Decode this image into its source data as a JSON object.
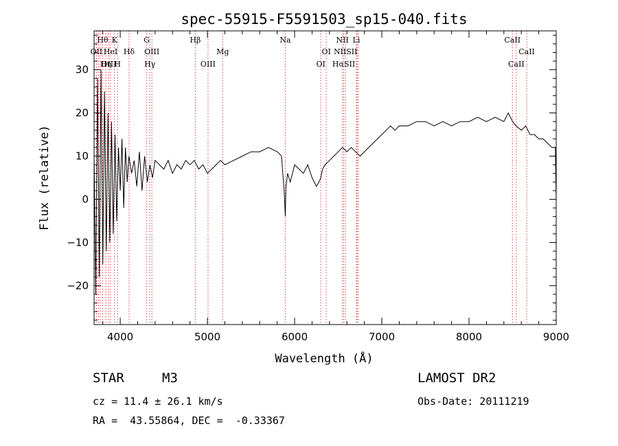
{
  "chart_data": {
    "type": "line",
    "title": "spec-55915-F5591503_sp15-040.fits",
    "xlabel": "Wavelength (Å)",
    "ylabel": "Flux (relative)",
    "xlim": [
      3700,
      9000
    ],
    "ylim": [
      -29,
      39
    ],
    "xticks": [
      4000,
      5000,
      6000,
      7000,
      8000,
      9000
    ],
    "yticks": [
      -20,
      -10,
      0,
      10,
      20,
      30
    ],
    "grid": false,
    "legend": "none",
    "line_color": "#000000",
    "marker_color": "#cc0000",
    "series": [
      {
        "x": [
          3700,
          3720,
          3740,
          3760,
          3780,
          3800,
          3820,
          3840,
          3860,
          3880,
          3900,
          3920,
          3940,
          3960,
          3980,
          4000,
          4020,
          4040,
          4060,
          4080,
          4100,
          4130,
          4160,
          4190,
          4220,
          4250,
          4280,
          4310,
          4340,
          4370,
          4400,
          4450,
          4500,
          4550,
          4600,
          4650,
          4700,
          4750,
          4800,
          4850,
          4900,
          4950,
          5000,
          5050,
          5100,
          5150,
          5200,
          5300,
          5400,
          5500,
          5600,
          5700,
          5800,
          5850,
          5880,
          5893,
          5900,
          5920,
          5950,
          6000,
          6050,
          6100,
          6150,
          6200,
          6250,
          6280,
          6300,
          6320,
          6350,
          6400,
          6450,
          6500,
          6550,
          6600,
          6650,
          6700,
          6750,
          6800,
          6850,
          6900,
          6950,
          7000,
          7050,
          7100,
          7150,
          7200,
          7300,
          7400,
          7500,
          7600,
          7700,
          7800,
          7900,
          8000,
          8100,
          8200,
          8300,
          8400,
          8450,
          8500,
          8540,
          8600,
          8650,
          8700,
          8750,
          8800,
          8850,
          8900,
          8950,
          8990,
          9000
        ],
        "y": [
          10,
          -22,
          28,
          -18,
          30,
          -15,
          25,
          -12,
          20,
          -10,
          18,
          -8,
          15,
          -5,
          12,
          2,
          14,
          -2,
          12,
          4,
          10,
          6,
          9,
          3,
          11,
          2,
          10,
          4,
          8,
          5,
          9,
          8,
          7,
          9,
          6,
          8,
          7,
          9,
          8,
          9,
          7,
          8,
          6,
          7,
          8,
          9,
          8,
          9,
          10,
          11,
          11,
          12,
          11,
          10,
          2,
          -4,
          3,
          6,
          4,
          8,
          7,
          6,
          8,
          5,
          3,
          4,
          5,
          7,
          8,
          9,
          10,
          11,
          12,
          11,
          12,
          11,
          10,
          11,
          12,
          13,
          14,
          15,
          16,
          17,
          16,
          17,
          17,
          18,
          18,
          17,
          18,
          17,
          18,
          18,
          19,
          18,
          19,
          18,
          20,
          18,
          17,
          16,
          17,
          15,
          15,
          14,
          14,
          13,
          12,
          12,
          0
        ]
      }
    ],
    "spectral_lines": [
      {
        "label": "Hθ",
        "x": 3798,
        "row": 1
      },
      {
        "label": "K",
        "x": 3934,
        "row": 1
      },
      {
        "label": "G",
        "x": 4304,
        "row": 1
      },
      {
        "label": "Hβ",
        "x": 4861,
        "row": 1
      },
      {
        "label": "Na",
        "x": 5893,
        "row": 1
      },
      {
        "label": "NII",
        "x": 6548,
        "row": 1
      },
      {
        "label": "Li",
        "x": 6708,
        "row": 1
      },
      {
        "label": "CaII",
        "x": 8498,
        "row": 1
      },
      {
        "label": "OII",
        "x": 3727,
        "row": 2
      },
      {
        "label": "HeI",
        "x": 3889,
        "row": 2
      },
      {
        "label": "Hδ",
        "x": 4102,
        "row": 2
      },
      {
        "label": "OIII",
        "x": 4363,
        "row": 2
      },
      {
        "label": "Mg",
        "x": 5175,
        "row": 2
      },
      {
        "label": "OI",
        "x": 6363,
        "row": 2
      },
      {
        "label": "NIISII",
        "x": 6584,
        "row": 2
      },
      {
        "label": "CaII",
        "x": 8662,
        "row": 2
      },
      {
        "label": "OIII",
        "x": 3869,
        "row": 3
      },
      {
        "label": "Hη",
        "x": 3835,
        "row": 3
      },
      {
        "label": "H",
        "x": 3969,
        "row": 3
      },
      {
        "label": "Hγ",
        "x": 4340,
        "row": 3
      },
      {
        "label": "OIII",
        "x": 5007,
        "row": 3
      },
      {
        "label": "OI",
        "x": 6300,
        "row": 3
      },
      {
        "label": "HαSII",
        "x": 6563,
        "row": 3
      },
      {
        "label": "CaII",
        "x": 8542,
        "row": 3
      }
    ],
    "marker_lines_x": [
      3727,
      3750,
      3770,
      3798,
      3835,
      3869,
      3889,
      3934,
      3969,
      4102,
      4304,
      4340,
      4363,
      4861,
      5007,
      5175,
      5893,
      6300,
      6363,
      6548,
      6563,
      6584,
      6708,
      6716,
      6731,
      8498,
      8542,
      8662
    ]
  },
  "info": {
    "object_class": "STAR",
    "subclass": "M3",
    "survey": "LAMOST DR2",
    "cz_text": "cz = 11.4 ± 26.1 km/s",
    "obs_date_text": "Obs-Date: 20111219",
    "coords_text": "RA =  43.55864, DEC =  -0.33367"
  }
}
